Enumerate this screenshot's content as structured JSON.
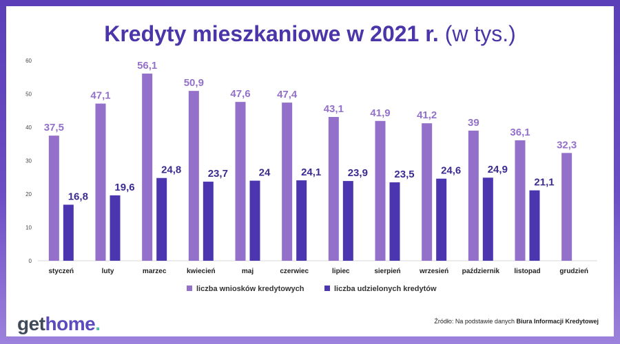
{
  "title": {
    "main": "Kredyty mieszkaniowe w 2021 r.",
    "sub": "(w tys.)"
  },
  "colors": {
    "applications": "#9370c9",
    "granted": "#4b36b0",
    "label_applications": "#9370c9",
    "label_granted": "#3b2a8f"
  },
  "chart_data": {
    "type": "bar",
    "title": "Kredyty mieszkaniowe w 2021 r. (w tys.)",
    "categories": [
      "styczeń",
      "luty",
      "marzec",
      "kwiecień",
      "maj",
      "czerwiec",
      "lipiec",
      "sierpień",
      "wrzesień",
      "październik",
      "listopad",
      "grudzień"
    ],
    "series": [
      {
        "name": "liczba wniosków kredytowych",
        "values": [
          37.5,
          47.1,
          56.1,
          50.9,
          47.6,
          47.4,
          43.1,
          41.9,
          41.2,
          39,
          36.1,
          32.3
        ]
      },
      {
        "name": "liczba udzielonych kredytów",
        "values": [
          16.8,
          19.6,
          24.8,
          23.7,
          24,
          24.1,
          23.9,
          23.5,
          24.6,
          24.9,
          21.1,
          null
        ]
      }
    ],
    "ylim": [
      0,
      60
    ],
    "yticks": [
      0,
      10,
      20,
      30,
      40,
      50,
      60
    ],
    "grid": false,
    "legend": "bottom"
  },
  "footer": {
    "logo_part1": "get",
    "logo_part2": "home",
    "logo_dot": ".",
    "source_prefix": "Źródło: Na podstawie danych ",
    "source_bold": "Biura Informacji Kredytowej"
  }
}
